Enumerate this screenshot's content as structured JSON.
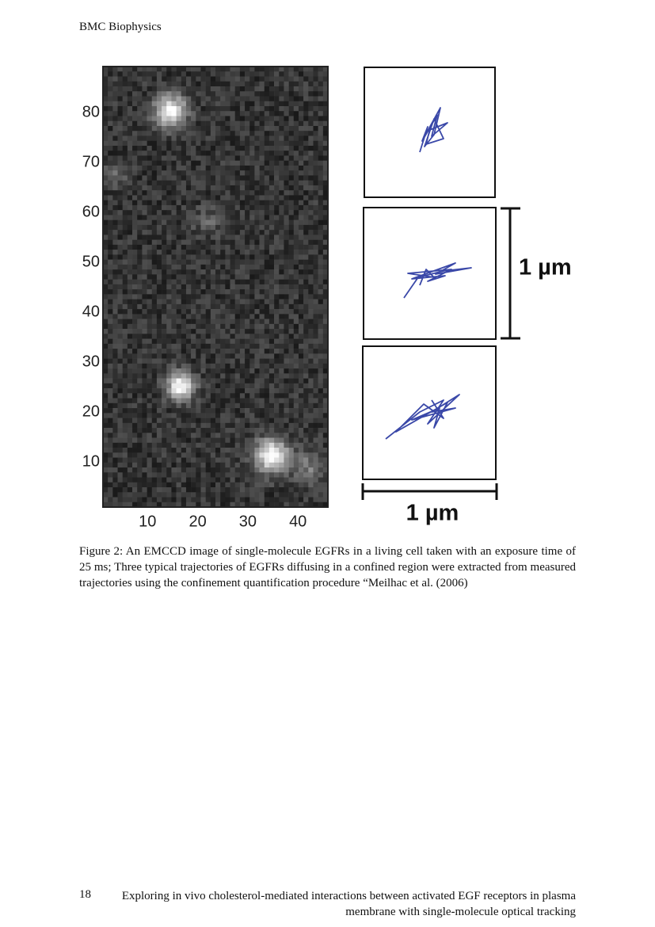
{
  "header": {
    "title": "BMC Biophysics"
  },
  "figure": {
    "y_ticks": [
      10,
      20,
      30,
      40,
      50,
      60,
      70,
      80
    ],
    "x_ticks": [
      10,
      20,
      30,
      40
    ],
    "vertical_scale_label": "1 µm",
    "horizontal_scale_label": "1 µm",
    "caption": "Figure 2: An EMCCD image of single-molecule EGFRs in a living cell taken with an exposure time of 25 ms; Three typical trajectories of EGFRs diffusing in a confined region were extracted from measured trajectories using the confinement quantification procedure “Meilhac et al. (2006)"
  },
  "footer": {
    "page_number": "18",
    "title": "Exploring in vivo cholesterol-mediated interactions between activated EGF receptors in plasma membrane with single-molecule optical tracking"
  }
}
